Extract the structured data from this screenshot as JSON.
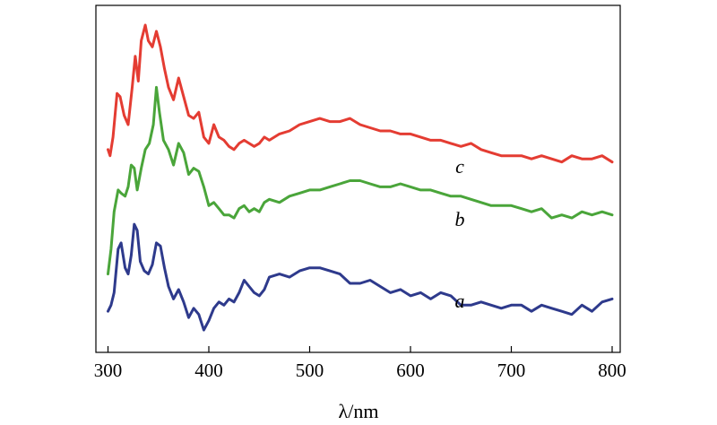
{
  "chart_data": {
    "type": "line",
    "xlabel": "λ/nm",
    "xlim": [
      288,
      808
    ],
    "ylim": [
      0,
      1
    ],
    "xticks": [
      300,
      400,
      500,
      600,
      700,
      800
    ],
    "grid": false,
    "legend": "none",
    "series": [
      {
        "name": "a",
        "color": "#2e3a8c",
        "x": [
          300,
          303,
          306,
          310,
          313,
          317,
          320,
          323,
          326,
          329,
          332,
          336,
          340,
          344,
          348,
          352,
          356,
          360,
          365,
          370,
          375,
          380,
          385,
          390,
          395,
          400,
          405,
          410,
          415,
          420,
          425,
          430,
          435,
          440,
          445,
          450,
          455,
          460,
          470,
          480,
          490,
          500,
          510,
          520,
          530,
          540,
          550,
          560,
          570,
          580,
          590,
          600,
          610,
          620,
          630,
          640,
          650,
          660,
          670,
          680,
          690,
          700,
          710,
          720,
          730,
          740,
          750,
          760,
          770,
          780,
          790,
          800
        ],
        "y": [
          0.08,
          0.1,
          0.14,
          0.28,
          0.3,
          0.22,
          0.2,
          0.26,
          0.36,
          0.34,
          0.24,
          0.21,
          0.2,
          0.23,
          0.3,
          0.29,
          0.22,
          0.16,
          0.12,
          0.15,
          0.11,
          0.06,
          0.09,
          0.07,
          0.02,
          0.05,
          0.09,
          0.11,
          0.1,
          0.12,
          0.11,
          0.14,
          0.18,
          0.16,
          0.14,
          0.13,
          0.15,
          0.19,
          0.2,
          0.19,
          0.21,
          0.22,
          0.22,
          0.21,
          0.2,
          0.17,
          0.17,
          0.18,
          0.16,
          0.14,
          0.15,
          0.13,
          0.14,
          0.12,
          0.14,
          0.13,
          0.1,
          0.1,
          0.11,
          0.1,
          0.09,
          0.1,
          0.1,
          0.08,
          0.1,
          0.09,
          0.08,
          0.07,
          0.1,
          0.08,
          0.11,
          0.12
        ]
      },
      {
        "name": "b",
        "color": "#4aa53a",
        "x": [
          300,
          303,
          306,
          310,
          313,
          317,
          320,
          323,
          326,
          329,
          333,
          337,
          341,
          345,
          348,
          351,
          355,
          360,
          365,
          370,
          375,
          380,
          385,
          390,
          395,
          400,
          405,
          410,
          415,
          420,
          425,
          430,
          435,
          440,
          445,
          450,
          455,
          460,
          470,
          480,
          490,
          500,
          510,
          520,
          530,
          540,
          550,
          560,
          570,
          580,
          590,
          600,
          610,
          620,
          630,
          640,
          650,
          660,
          670,
          680,
          690,
          700,
          710,
          720,
          730,
          740,
          750,
          760,
          770,
          780,
          790,
          800
        ],
        "y": [
          0.2,
          0.28,
          0.4,
          0.47,
          0.46,
          0.45,
          0.48,
          0.55,
          0.54,
          0.47,
          0.54,
          0.6,
          0.62,
          0.68,
          0.8,
          0.72,
          0.63,
          0.6,
          0.55,
          0.62,
          0.59,
          0.52,
          0.54,
          0.53,
          0.48,
          0.42,
          0.43,
          0.41,
          0.39,
          0.39,
          0.38,
          0.41,
          0.42,
          0.4,
          0.41,
          0.4,
          0.43,
          0.44,
          0.43,
          0.45,
          0.46,
          0.47,
          0.47,
          0.48,
          0.49,
          0.5,
          0.5,
          0.49,
          0.48,
          0.48,
          0.49,
          0.48,
          0.47,
          0.47,
          0.46,
          0.45,
          0.45,
          0.44,
          0.43,
          0.42,
          0.42,
          0.42,
          0.41,
          0.4,
          0.41,
          0.38,
          0.39,
          0.38,
          0.4,
          0.39,
          0.4,
          0.39
        ]
      },
      {
        "name": "c",
        "color": "#e43c32",
        "x": [
          300,
          302,
          305,
          309,
          312,
          316,
          320,
          324,
          327,
          330,
          333,
          337,
          340,
          344,
          348,
          352,
          356,
          360,
          365,
          370,
          375,
          380,
          385,
          390,
          395,
          400,
          405,
          410,
          415,
          420,
          425,
          430,
          435,
          440,
          445,
          450,
          455,
          460,
          470,
          480,
          490,
          500,
          510,
          520,
          530,
          540,
          550,
          560,
          570,
          580,
          590,
          600,
          610,
          620,
          630,
          640,
          650,
          660,
          670,
          680,
          690,
          700,
          710,
          720,
          730,
          740,
          750,
          760,
          770,
          780,
          790,
          800
        ],
        "y": [
          0.6,
          0.58,
          0.64,
          0.78,
          0.77,
          0.71,
          0.68,
          0.8,
          0.9,
          0.82,
          0.95,
          1.0,
          0.95,
          0.93,
          0.98,
          0.93,
          0.86,
          0.8,
          0.76,
          0.83,
          0.77,
          0.71,
          0.7,
          0.72,
          0.64,
          0.62,
          0.68,
          0.64,
          0.63,
          0.61,
          0.6,
          0.62,
          0.63,
          0.62,
          0.61,
          0.62,
          0.64,
          0.63,
          0.65,
          0.66,
          0.68,
          0.69,
          0.7,
          0.69,
          0.69,
          0.7,
          0.68,
          0.67,
          0.66,
          0.66,
          0.65,
          0.65,
          0.64,
          0.63,
          0.63,
          0.62,
          0.61,
          0.62,
          0.6,
          0.59,
          0.58,
          0.58,
          0.58,
          0.57,
          0.58,
          0.57,
          0.56,
          0.58,
          0.57,
          0.57,
          0.58,
          0.56
        ]
      }
    ]
  }
}
